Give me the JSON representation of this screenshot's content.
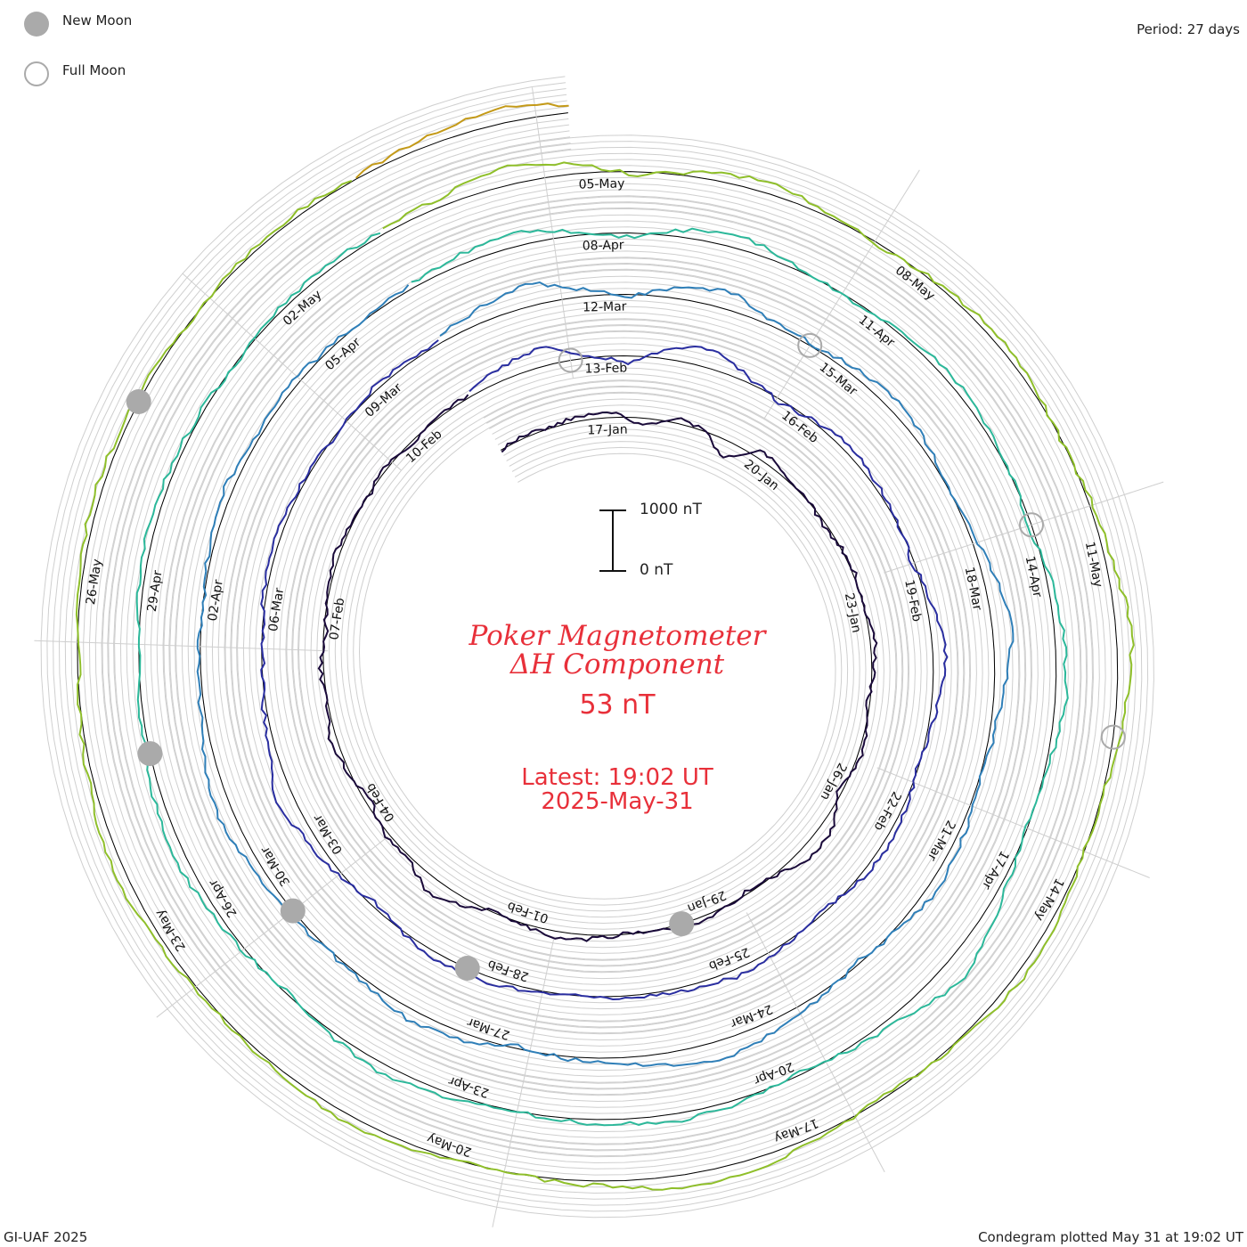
{
  "legend": {
    "new_moon_label": "New Moon",
    "full_moon_label": "Full Moon",
    "new_moon_color": "#aaaaaa",
    "full_moon_color": "#aaaaaa"
  },
  "header": {
    "period_label": "Period: 27 days"
  },
  "center": {
    "title_line1": "Poker Magnetometer",
    "title_line2": "ΔH Component",
    "current_value": "53 nT",
    "latest_label": "Latest: 19:02 UT",
    "latest_date": "2025-May-31",
    "scale_top_label": "1000 nT",
    "scale_bottom_label": "0 nT",
    "text_color": "#e8303a"
  },
  "footer": {
    "credit": "GI-UAF 2025",
    "plotted_label": "Condegram plotted May 31 at 19:02 UT"
  },
  "chart_data": {
    "type": "line",
    "subtype": "spiral condegram",
    "period_days": 27,
    "start_date": "2025-01-15",
    "end_date": "2025-05-31",
    "units": "nT",
    "scale_bar": [
      0,
      1000
    ],
    "grid": true,
    "date_labels": [
      "17-Jan",
      "20-Jan",
      "23-Jan",
      "26-Jan",
      "29-Jan",
      "01-Feb",
      "04-Feb",
      "07-Feb",
      "10-Feb",
      "13-Feb",
      "16-Feb",
      "19-Feb",
      "22-Feb",
      "25-Feb",
      "28-Feb",
      "03-Mar",
      "06-Mar",
      "09-Mar",
      "12-Mar",
      "15-Mar",
      "18-Mar",
      "21-Mar",
      "24-Mar",
      "27-Mar",
      "30-Mar",
      "02-Apr",
      "05-Apr",
      "08-Apr",
      "11-Apr",
      "14-Apr",
      "17-Apr",
      "20-Apr",
      "23-Apr",
      "26-Apr",
      "29-Apr",
      "02-May",
      "05-May",
      "08-May",
      "11-May",
      "14-May",
      "17-May",
      "20-May",
      "23-May",
      "26-May"
    ],
    "new_moons": [
      "2025-01-29",
      "2025-02-28",
      "2025-03-29",
      "2025-04-27",
      "2025-05-27"
    ],
    "full_moons": [
      "2025-02-12",
      "2025-03-14",
      "2025-04-13",
      "2025-05-12"
    ],
    "series": [
      {
        "values": [
          0,
          40,
          20,
          90,
          60,
          -120,
          80,
          30,
          -300,
          140,
          60,
          20,
          -60,
          10,
          30,
          -20,
          80,
          40,
          -40,
          20,
          60,
          -80,
          180,
          200,
          40,
          -60,
          20,
          90,
          30,
          -20,
          60,
          110,
          40,
          -40,
          140,
          260,
          20,
          60,
          -90,
          30,
          100,
          20,
          60,
          -40,
          20,
          80,
          30,
          -20,
          60,
          -60,
          20,
          40
        ]
      },
      {
        "values": [
          60,
          220,
          300,
          40,
          -120,
          180,
          320,
          80,
          -60,
          40,
          120,
          60,
          20,
          -40,
          80,
          220,
          160,
          40,
          -20,
          60,
          100,
          40,
          -60,
          20,
          140,
          80,
          30,
          60,
          -20,
          40,
          90,
          120,
          40,
          -80,
          60,
          160,
          280,
          100,
          40,
          -40,
          20,
          80,
          60,
          30,
          -20,
          50,
          70,
          20
        ]
      },
      {
        "values": [
          100,
          240,
          380,
          120,
          -40,
          200,
          300,
          60,
          40,
          120,
          200,
          80,
          -20,
          60,
          240,
          320,
          140,
          60,
          20,
          100,
          160,
          40,
          -40,
          60,
          180,
          300,
          220,
          80,
          40,
          -60,
          120,
          180,
          60,
          20,
          80,
          140,
          260,
          180,
          60,
          20,
          -20,
          80,
          140,
          60,
          100,
          40,
          20,
          60
        ]
      },
      {
        "values": [
          80,
          160,
          220,
          60,
          -80,
          140,
          200,
          40,
          -40,
          60,
          120,
          80,
          20,
          -60,
          60,
          140,
          180,
          60,
          -20,
          40,
          200,
          380,
          140,
          40,
          -40,
          60,
          120,
          80,
          40,
          -20,
          80,
          160,
          60,
          -40,
          40,
          120,
          200,
          100,
          40,
          -20,
          60,
          120,
          80,
          40,
          -20,
          60,
          80,
          40
        ]
      },
      {
        "values": [
          60,
          140,
          320,
          180,
          -60,
          80,
          200,
          60,
          -40,
          40,
          100,
          60,
          -20,
          40,
          120,
          260,
          160,
          40,
          -20,
          60,
          140,
          80,
          20,
          -40,
          60,
          160,
          220,
          100,
          40,
          -20,
          80,
          140,
          60,
          20,
          40,
          120,
          180,
          80,
          40,
          -40,
          60,
          100,
          80,
          40,
          -20,
          40,
          60,
          30
        ]
      },
      {
        "values": [
          40,
          120,
          260,
          140,
          -60,
          100,
          220,
          80,
          -40,
          60,
          120,
          60,
          20,
          -40,
          80,
          180,
          140,
          60,
          20,
          80,
          120,
          60,
          -20,
          40,
          100,
          200,
          160,
          60,
          20,
          -40,
          60,
          120,
          80,
          20,
          40,
          100,
          160,
          80,
          40,
          -20,
          60,
          100,
          60,
          40,
          -20,
          40,
          60,
          40
        ]
      }
    ]
  }
}
